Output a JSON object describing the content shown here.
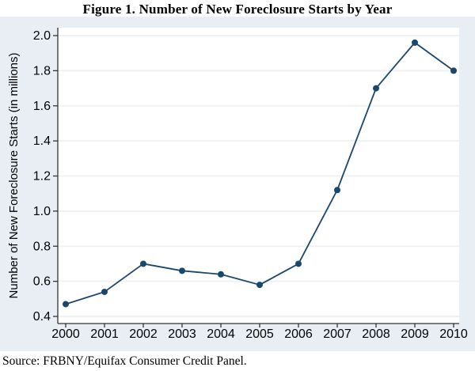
{
  "chart_data": {
    "type": "line",
    "title": "Figure 1. Number of New Foreclosure Starts by Year",
    "series_name": "New foreclosure starts",
    "x": [
      2000,
      2001,
      2002,
      2003,
      2004,
      2005,
      2006,
      2007,
      2008,
      2009,
      2010
    ],
    "values": [
      0.47,
      0.54,
      0.7,
      0.66,
      0.64,
      0.58,
      0.7,
      1.12,
      1.7,
      1.96,
      1.8
    ],
    "xlabel": "",
    "ylabel": "Number of New Foreclosure Starts (in millions)",
    "ylim": [
      0.4,
      2.0
    ],
    "yticks": [
      0.4,
      0.6,
      0.8,
      1.0,
      1.2,
      1.4,
      1.6,
      1.8,
      2.0
    ],
    "xticks": [
      2000,
      2001,
      2002,
      2003,
      2004,
      2005,
      2006,
      2007,
      2008,
      2009,
      2010
    ],
    "grid": "horizontal-major",
    "legend": "none",
    "marker": "filled-circle",
    "source": "Source: FRBNY/Equifax Consumer Credit Panel.",
    "colors": {
      "line": "#1a476f",
      "marker": "#1a476f",
      "panel_background": "#e8eef4",
      "plot_background": "#ffffff",
      "gridline": "#eff1f2",
      "axis": "#333333",
      "text": "#000000"
    }
  }
}
